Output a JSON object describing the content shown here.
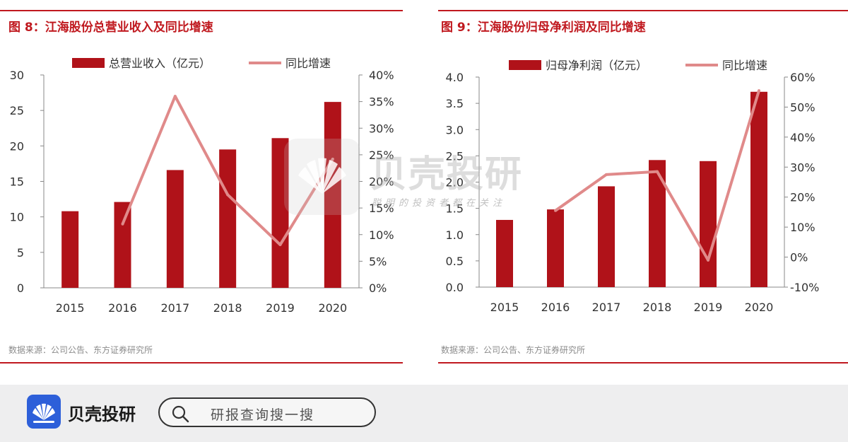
{
  "chart_data": [
    {
      "type": "bar",
      "title": "图 8：江海股份总营业收入及同比增速",
      "source": "数据来源：公司公告、东方证券研究所",
      "categories": [
        "2015",
        "2016",
        "2017",
        "2018",
        "2019",
        "2020"
      ],
      "series": [
        {
          "name": "总营业收入（亿元）",
          "type": "bar",
          "axis": "left",
          "values": [
            10.8,
            12.1,
            16.6,
            19.5,
            21.1,
            26.2
          ]
        },
        {
          "name": "同比增速",
          "type": "line",
          "axis": "right",
          "values": [
            null,
            12.0,
            36.0,
            17.5,
            8.1,
            24.2
          ]
        }
      ],
      "y_left": {
        "min": 0,
        "max": 30,
        "ticks": [
          "0",
          "5",
          "10",
          "15",
          "20",
          "25",
          "30"
        ]
      },
      "y_right": {
        "min": 0,
        "max": 40,
        "ticks": [
          "0%",
          "5%",
          "10%",
          "15%",
          "20%",
          "25%",
          "30%",
          "35%",
          "40%"
        ]
      },
      "legend_position": "top",
      "grid": false
    },
    {
      "type": "bar",
      "title": "图 9：江海股份归母净利润及同比增速",
      "source": "数据来源：公司公告、东方证券研究所",
      "categories": [
        "2015",
        "2016",
        "2017",
        "2018",
        "2019",
        "2020"
      ],
      "series": [
        {
          "name": "归母净利润（亿元）",
          "type": "bar",
          "axis": "left",
          "values": [
            1.28,
            1.48,
            1.92,
            2.42,
            2.4,
            3.72
          ]
        },
        {
          "name": "同比增速",
          "type": "line",
          "axis": "right",
          "values": [
            null,
            15.5,
            27.5,
            28.5,
            -1.0,
            55.5
          ]
        }
      ],
      "y_left": {
        "min": 0,
        "max": 4,
        "ticks": [
          "0.0",
          "0.5",
          "1.0",
          "1.5",
          "2.0",
          "2.5",
          "3.0",
          "3.5",
          "4.0"
        ]
      },
      "y_right": {
        "min": -10,
        "max": 60,
        "ticks": [
          "-10%",
          "0%",
          "10%",
          "20%",
          "30%",
          "40%",
          "50%",
          "60%"
        ]
      },
      "legend_position": "top",
      "grid": false
    }
  ],
  "colors": {
    "bar": "#b01219",
    "line": "#e08a8a",
    "accent": "#c0191f"
  },
  "watermark": {
    "brand": "贝壳投研",
    "slogan": "聪明的投资者都在关注"
  },
  "footer": {
    "brand": "贝壳投研",
    "search_placeholder": "研报查询搜一搜",
    "logo_icon": "shell-logo-icon",
    "search_icon": "search-icon"
  }
}
